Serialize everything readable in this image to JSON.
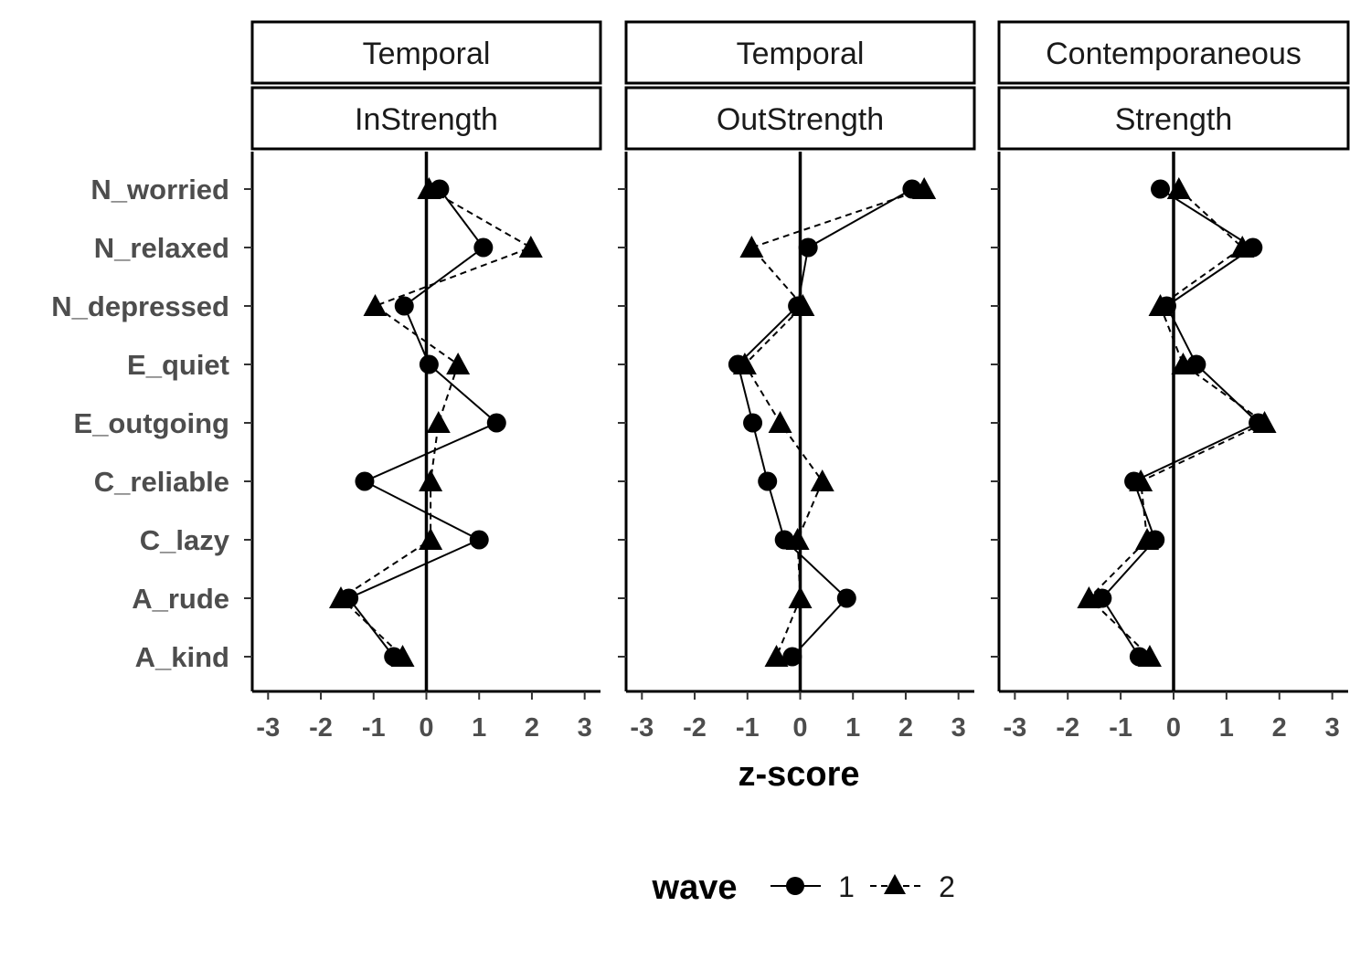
{
  "chart_data": {
    "type": "scatter",
    "xlabel": "z-score",
    "xlim": [
      -3.3,
      3.3
    ],
    "xticks": [
      "-3",
      "-2",
      "-1",
      "0",
      "1",
      "2",
      "3"
    ],
    "categories": [
      "N_worried",
      "N_relaxed",
      "N_depressed",
      "E_quiet",
      "E_outgoing",
      "C_reliable",
      "C_lazy",
      "A_rude",
      "A_kind"
    ],
    "legend": {
      "title": "wave",
      "position": "bottom",
      "entries": [
        {
          "label": "1",
          "marker": "circle",
          "line": "solid"
        },
        {
          "label": "2",
          "marker": "triangle",
          "line": "dashed"
        }
      ]
    },
    "grid": false,
    "reference_line_x": 0,
    "panels": [
      {
        "strip_top": "Temporal",
        "strip_bottom": "InStrength",
        "series": [
          {
            "name": "1",
            "values": [
              0.25,
              1.08,
              -0.42,
              0.05,
              1.33,
              -1.17,
              1.0,
              -1.47,
              -0.62
            ]
          },
          {
            "name": "2",
            "values": [
              0.05,
              1.98,
              -0.97,
              0.6,
              0.23,
              0.08,
              0.08,
              -1.62,
              -0.45
            ]
          }
        ]
      },
      {
        "strip_top": "Temporal",
        "strip_bottom": "OutStrength",
        "series": [
          {
            "name": "1",
            "values": [
              2.12,
              0.15,
              -0.05,
              -1.18,
              -0.9,
              -0.62,
              -0.3,
              0.88,
              -0.15
            ]
          },
          {
            "name": "2",
            "values": [
              2.35,
              -0.92,
              0.05,
              -1.05,
              -0.38,
              0.42,
              -0.05,
              0.0,
              -0.45
            ]
          }
        ]
      },
      {
        "strip_top": "Contemporaneous",
        "strip_bottom": "Strength",
        "series": [
          {
            "name": "1",
            "values": [
              -0.25,
              1.5,
              -0.13,
              0.43,
              1.6,
              -0.75,
              -0.35,
              -1.35,
              -0.65
            ]
          },
          {
            "name": "2",
            "values": [
              0.1,
              1.3,
              -0.25,
              0.18,
              1.72,
              -0.62,
              -0.5,
              -1.6,
              -0.45
            ]
          }
        ]
      }
    ]
  }
}
